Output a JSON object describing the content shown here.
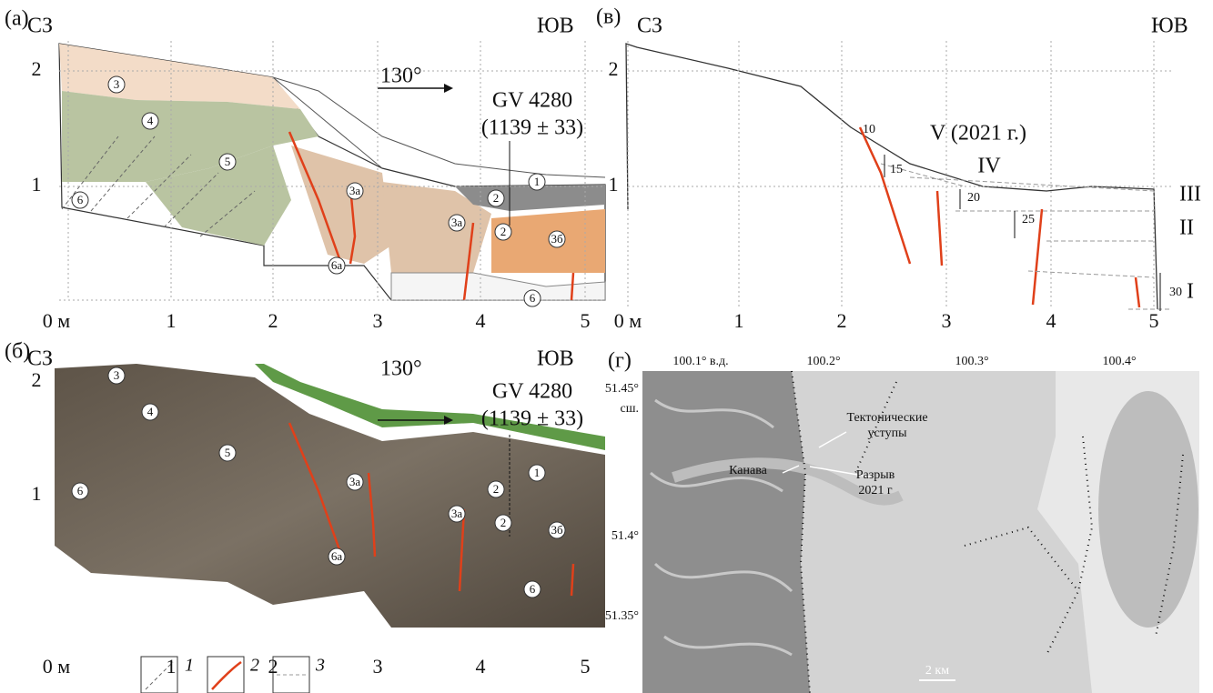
{
  "panel_a": {
    "label": "(а)",
    "left": "СЗ",
    "right": "ЮВ",
    "direction": "130°",
    "sample": "GV 4280",
    "age": "(1139 ± 33)",
    "x_labels": [
      "0 м",
      "1",
      "2",
      "3",
      "4",
      "5"
    ],
    "y_labels": [
      "2",
      "1"
    ],
    "units": [
      "3",
      "4",
      "5",
      "6",
      "1",
      "2",
      "3а",
      "3а",
      "2",
      "3б",
      "6а",
      "6"
    ]
  },
  "panel_b": {
    "label": "(б)",
    "left": "СЗ",
    "right": "ЮВ",
    "direction": "130°",
    "sample": "GV 4280",
    "age": "(1139 ± 33)",
    "x_labels": [
      "0 м",
      "1",
      "2",
      "3",
      "4",
      "5"
    ],
    "y_labels": [
      "2",
      "1"
    ],
    "units": [
      "3",
      "4",
      "5",
      "6",
      "1",
      "2",
      "3а",
      "3а",
      "2",
      "3б",
      "6а",
      "6"
    ]
  },
  "panel_v": {
    "label": "(в)",
    "left": "СЗ",
    "right": "ЮВ",
    "x_labels": [
      "0 м",
      "1",
      "2",
      "3",
      "4",
      "5"
    ],
    "y_labels": [
      "2",
      "1"
    ],
    "offsets": [
      "10",
      "15",
      "20",
      "25",
      "30"
    ],
    "events": [
      "V (2021 г.)",
      "IV",
      "III",
      "II",
      "I"
    ]
  },
  "panel_g": {
    "label": "(г)",
    "lon_labels": [
      "100.1° в.д.",
      "100.2°",
      "100.3°",
      "100.4°"
    ],
    "lat_labels": [
      "51.45°",
      "сш.",
      "51.4°",
      "51.35°"
    ],
    "scarps": [
      "Тектонические",
      "уступы"
    ],
    "trench": "Канава",
    "rupture": [
      "Разрыв",
      "2021 г"
    ],
    "scale": "2 км"
  },
  "legend": [
    "1",
    "2",
    "3"
  ]
}
